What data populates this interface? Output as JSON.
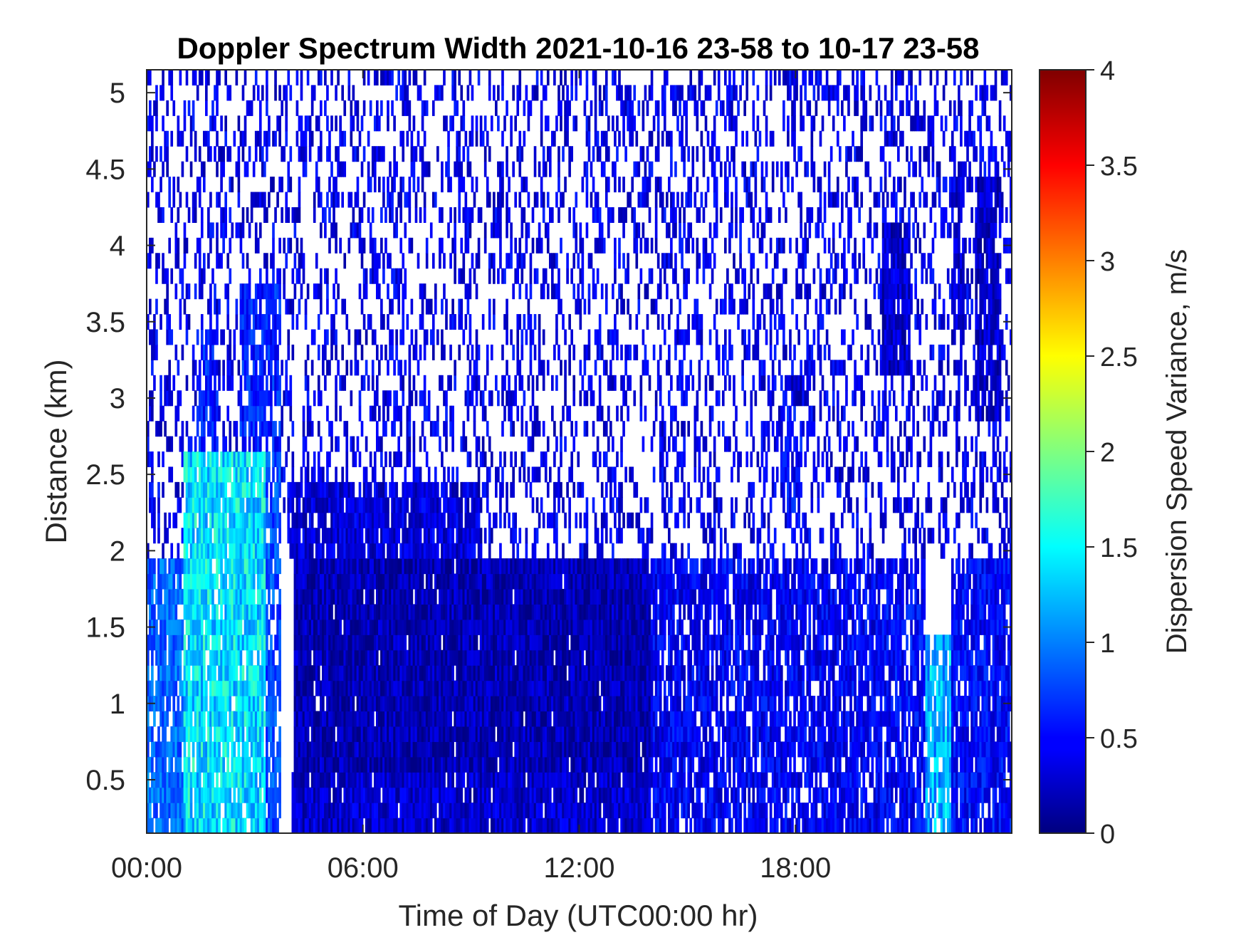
{
  "chart_data": {
    "type": "heatmap",
    "title": "Doppler Spectrum Width 2021-10-16 23-58 to 10-17 23-58",
    "xlabel": "Time of Day (UTC00:00 hr)",
    "ylabel": "Distance (km)",
    "x_unit": "hours",
    "xlim": [
      0,
      24
    ],
    "ylim": [
      0.15,
      5.15
    ],
    "x_ticks": [
      {
        "value": 0,
        "label": "00:00"
      },
      {
        "value": 6,
        "label": "06:00"
      },
      {
        "value": 12,
        "label": "12:00"
      },
      {
        "value": 18,
        "label": "18:00"
      }
    ],
    "y_ticks": [
      {
        "value": 0.5,
        "label": "0.5"
      },
      {
        "value": 1,
        "label": "1"
      },
      {
        "value": 1.5,
        "label": "1.5"
      },
      {
        "value": 2,
        "label": "2"
      },
      {
        "value": 2.5,
        "label": "2.5"
      },
      {
        "value": 3,
        "label": "3"
      },
      {
        "value": 3.5,
        "label": "3.5"
      },
      {
        "value": 4,
        "label": "4"
      },
      {
        "value": 4.5,
        "label": "4.5"
      },
      {
        "value": 5,
        "label": "5"
      }
    ],
    "colorbar": {
      "label": "Dispersion Speed Variance, m/s",
      "colormap": "jet",
      "range": [
        0,
        4
      ],
      "ticks": [
        {
          "value": 0,
          "label": "0"
        },
        {
          "value": 0.5,
          "label": "0.5"
        },
        {
          "value": 1,
          "label": "1"
        },
        {
          "value": 1.5,
          "label": "1.5"
        },
        {
          "value": 2,
          "label": "2"
        },
        {
          "value": 2.5,
          "label": "2.5"
        },
        {
          "value": 3,
          "label": "3"
        },
        {
          "value": 3.5,
          "label": "3.5"
        },
        {
          "value": 4,
          "label": "4"
        }
      ]
    },
    "regions": [
      {
        "t": [
          0.0,
          1.0
        ],
        "h": [
          0.15,
          2.0
        ],
        "value": 0.9,
        "coverage": 0.85
      },
      {
        "t": [
          1.0,
          3.3
        ],
        "h": [
          0.15,
          2.7
        ],
        "value": 1.4,
        "coverage": 0.9
      },
      {
        "t": [
          1.4,
          2.0
        ],
        "h": [
          2.7,
          3.5
        ],
        "value": 0.6,
        "coverage": 0.7
      },
      {
        "t": [
          2.6,
          3.7
        ],
        "h": [
          2.7,
          3.8
        ],
        "value": 0.6,
        "coverage": 0.75
      },
      {
        "t": [
          3.3,
          3.7
        ],
        "h": [
          0.15,
          2.7
        ],
        "value": 0.8,
        "coverage": 0.8
      },
      {
        "t": [
          3.9,
          9.3
        ],
        "h": [
          2.0,
          2.5
        ],
        "value": 0.35,
        "coverage": 0.9
      },
      {
        "t": [
          4.1,
          14.0
        ],
        "h": [
          0.3,
          2.0
        ],
        "value": 0.2,
        "coverage": 0.98
      },
      {
        "t": [
          4.0,
          17.2
        ],
        "h": [
          0.15,
          0.5
        ],
        "value": 0.3,
        "coverage": 0.95
      },
      {
        "t": [
          14.0,
          20.5
        ],
        "h": [
          0.15,
          2.0
        ],
        "value": 0.45,
        "coverage": 0.8
      },
      {
        "t": [
          17.6,
          18.2
        ],
        "h": [
          2.3,
          3.0
        ],
        "value": 0.5,
        "coverage": 0.65
      },
      {
        "t": [
          17.9,
          18.4
        ],
        "h": [
          3.0,
          3.2
        ],
        "value": 0.35,
        "coverage": 0.9
      },
      {
        "t": [
          20.5,
          21.6
        ],
        "h": [
          0.15,
          2.0
        ],
        "value": 0.5,
        "coverage": 0.8
      },
      {
        "t": [
          21.6,
          22.3
        ],
        "h": [
          0.15,
          1.5
        ],
        "value": 1.2,
        "coverage": 0.85
      },
      {
        "t": [
          22.3,
          24.0
        ],
        "h": [
          0.15,
          2.0
        ],
        "value": 0.5,
        "coverage": 0.85
      },
      {
        "t": [
          20.4,
          21.2
        ],
        "h": [
          3.2,
          4.2
        ],
        "value": 0.3,
        "coverage": 0.95
      },
      {
        "t": [
          22.3,
          22.7
        ],
        "h": [
          3.4,
          4.6
        ],
        "value": 0.35,
        "coverage": 0.8
      },
      {
        "t": [
          23.0,
          23.7
        ],
        "h": [
          2.9,
          4.5
        ],
        "value": 0.3,
        "coverage": 0.9
      }
    ],
    "background": {
      "h": [
        2.0,
        5.15
      ],
      "value": 0.4,
      "coverage": 0.32
    }
  }
}
